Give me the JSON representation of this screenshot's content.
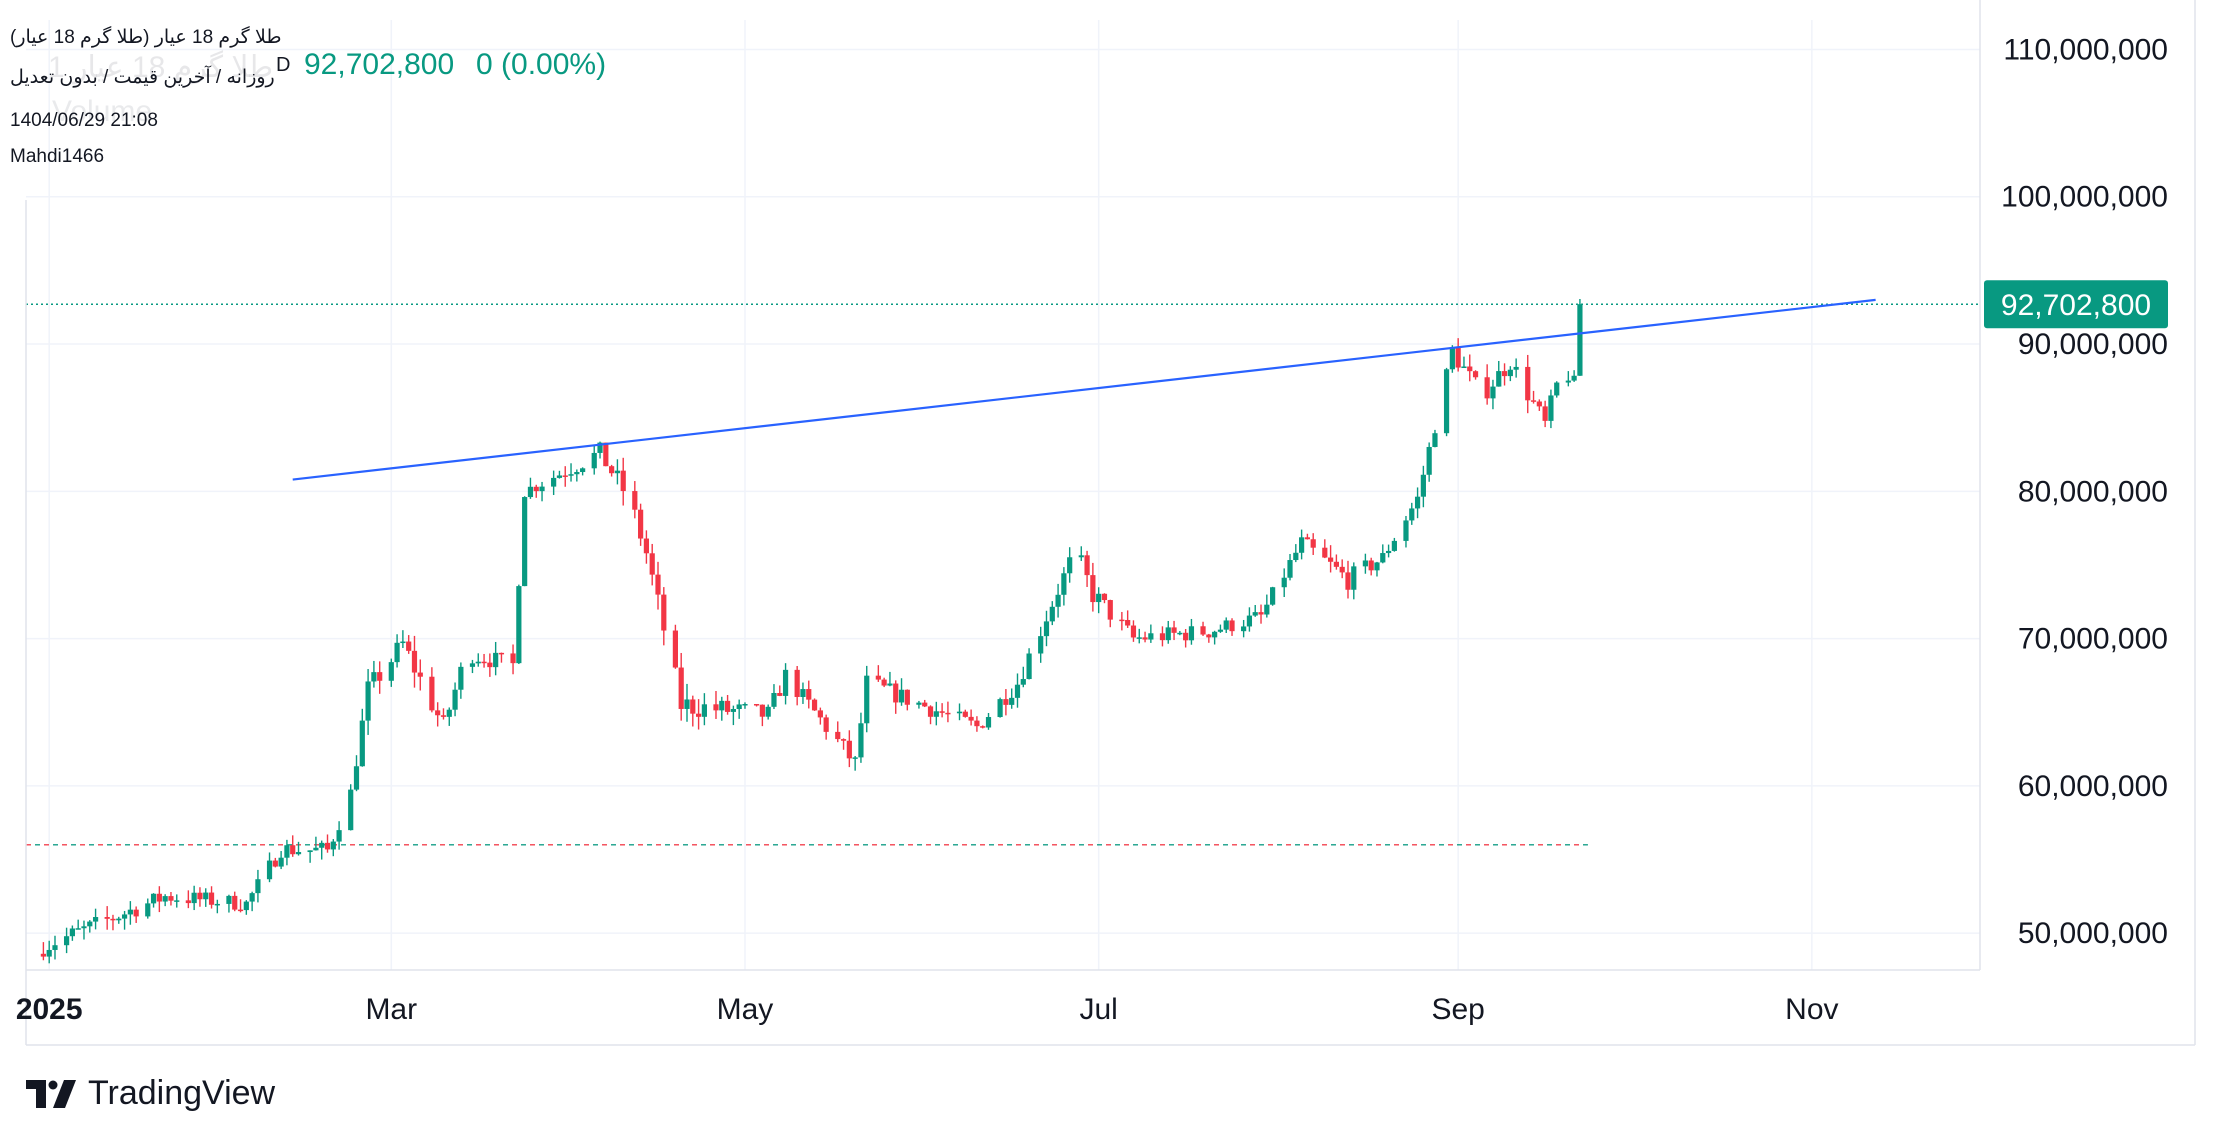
{
  "header": {
    "title": "طلا گرم 18 عیار (طلا گرم 18 عیار)",
    "subtitle": "روزانه / آخرین قیمت / بدون تعدیل",
    "timestamp": "1404/06/29 21:08",
    "author": "Mahdi1466",
    "ghost_title": "طلا گرم 18 عیار 1",
    "ghost_volume": "Volume",
    "last_price": "92,702,800",
    "change": "0 (0.00%)",
    "dot_glyph": "D"
  },
  "brand": {
    "name": "TradingView",
    "logo_icon": "tradingview-logo-icon"
  },
  "colors": {
    "up": "#089981",
    "down": "#f23645",
    "trendline": "#2962ff",
    "grid": "#f0f3fa",
    "text": "#131722",
    "axis_line": "#e0e3eb",
    "support_red": "#f23645",
    "support_green": "#089981"
  },
  "chart_data": {
    "type": "candlestick",
    "title": "طلا گرم 18 عیار (طلا گرم 18 عیار)",
    "timeframe": "روزانه",
    "x_tick_labels": [
      "2025",
      "Mar",
      "May",
      "Jul",
      "Sep",
      "Nov"
    ],
    "x_ticks": [
      "2025-01-01",
      "2025-03-01",
      "2025-05-01",
      "2025-07-01",
      "2025-09-01",
      "2025-11-01"
    ],
    "x_range": [
      "2024-12-28",
      "2025-11-30"
    ],
    "y_tick_labels": [
      "50,000,000",
      "60,000,000",
      "70,000,000",
      "80,000,000",
      "90,000,000",
      "100,000,000",
      "110,000,000"
    ],
    "y_ticks": [
      50000000,
      60000000,
      70000000,
      80000000,
      90000000,
      100000000,
      110000000
    ],
    "ylim": [
      47500000,
      112000000
    ],
    "grid": true,
    "price_label": "92,702,800",
    "last_price": 92702800,
    "horizontal_level": 56000000,
    "trendline": {
      "from": [
        "2025-02-12",
        80800000
      ],
      "to": [
        "2025-11-12",
        93000000
      ]
    },
    "segments": [
      [
        "2024-12-28",
        48600000,
        1.25
      ],
      [
        "2025-01-21",
        52500000,
        1.1
      ],
      [
        "2025-02-04",
        52000000,
        1.0
      ],
      [
        "2025-02-10",
        55700000,
        1.05
      ],
      [
        "2025-02-18",
        55600000,
        1.2
      ],
      [
        "2025-02-22",
        59500000,
        1.05
      ],
      [
        "2025-02-25",
        66500000,
        1.4
      ],
      [
        "2025-03-03",
        69600000,
        1.5
      ],
      [
        "2025-03-10",
        64000000,
        1.4
      ],
      [
        "2025-03-14",
        69000000,
        1.1
      ],
      [
        "2025-03-22",
        68200000,
        1.2
      ],
      [
        "2025-03-24",
        80000000,
        0.9
      ],
      [
        "2025-04-06",
        82600000,
        1.3
      ],
      [
        "2025-04-11",
        79500000,
        1.5
      ],
      [
        "2025-04-14",
        75800000,
        1.4
      ],
      [
        "2025-04-20",
        65500000,
        1.6
      ],
      [
        "2025-05-05",
        64800000,
        1.3
      ],
      [
        "2025-05-08",
        67500000,
        1.1
      ],
      [
        "2025-05-20",
        61500000,
        1.3
      ],
      [
        "2025-05-22",
        67000000,
        1.2
      ],
      [
        "2025-06-10",
        64000000,
        1.1
      ],
      [
        "2025-06-17",
        67000000,
        1.2
      ],
      [
        "2025-06-27",
        76000000,
        1.2
      ],
      [
        "2025-06-30",
        73000000,
        1.4
      ],
      [
        "2025-07-07",
        70000000,
        1.1
      ],
      [
        "2025-07-20",
        70500000,
        1.1
      ],
      [
        "2025-07-29",
        71500000,
        1.0
      ],
      [
        "2025-08-05",
        76500000,
        1.1
      ],
      [
        "2025-08-13",
        74000000,
        1.3
      ],
      [
        "2025-08-19",
        75500000,
        1.0
      ],
      [
        "2025-08-25",
        79500000,
        1.0
      ],
      [
        "2025-08-31",
        89500000,
        1.25
      ],
      [
        "2025-09-05",
        86500000,
        1.3
      ],
      [
        "2025-09-10",
        88800000,
        1.2
      ],
      [
        "2025-09-16",
        84500000,
        1.3
      ],
      [
        "2025-09-19",
        88500000,
        1.2
      ],
      [
        "2025-09-21",
        87300000,
        1.0
      ],
      [
        "2025-09-22",
        90300000,
        1.0
      ],
      [
        "2025-09-22",
        92702800,
        0.9
      ]
    ]
  }
}
